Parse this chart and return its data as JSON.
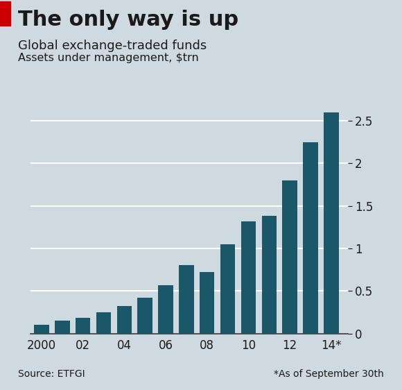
{
  "title": "The only way is up",
  "subtitle": "Global exchange-traded funds",
  "ylabel": "Assets under management, $trn",
  "years": [
    2000,
    2001,
    2002,
    2003,
    2004,
    2005,
    2006,
    2007,
    2008,
    2009,
    2010,
    2011,
    2012,
    2013,
    2014
  ],
  "values": [
    0.1,
    0.15,
    0.18,
    0.25,
    0.32,
    0.42,
    0.57,
    0.8,
    0.72,
    1.05,
    1.32,
    1.38,
    1.8,
    2.25,
    2.6
  ],
  "bar_color": "#1a5769",
  "background_color": "#cfd9e0",
  "grid_color": "#ffffff",
  "text_color": "#1a1a1a",
  "source_text": "Source: ETFGI",
  "footnote_text": "*As of September 30th",
  "x_tick_labels": [
    "2000",
    "02",
    "04",
    "06",
    "08",
    "10",
    "12",
    "14*"
  ],
  "x_tick_positions": [
    2000,
    2002,
    2004,
    2006,
    2008,
    2010,
    2012,
    2014
  ],
  "ylim": [
    0,
    2.75
  ],
  "yticks": [
    0,
    0.5,
    1.0,
    1.5,
    2.0,
    2.5
  ],
  "red_accent_color": "#cc0000",
  "title_fontsize": 22,
  "subtitle_fontsize": 13,
  "ylabel_fontsize": 11.5,
  "tick_fontsize": 12,
  "source_fontsize": 10
}
